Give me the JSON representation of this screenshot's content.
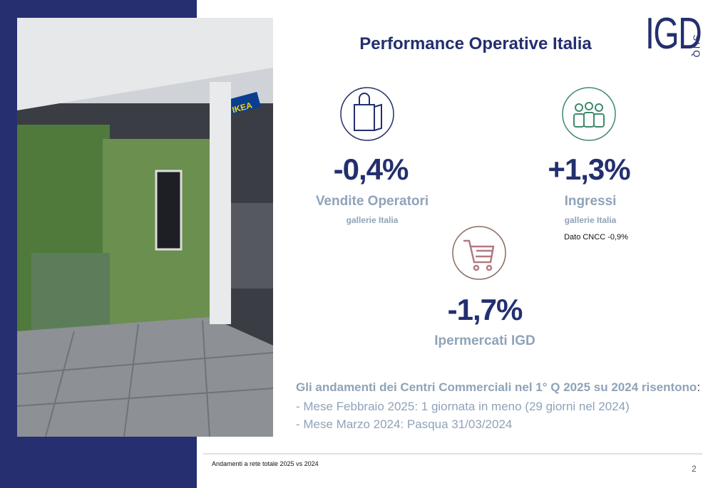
{
  "header": {
    "title": "Performance Operative Italia"
  },
  "logo": {
    "text": "IGD",
    "sub": "SIIQ"
  },
  "metrics": [
    {
      "value": "-0,4%",
      "label": "Vendite Operatori",
      "sub": "gallerie Italia"
    },
    {
      "value": "+1,3%",
      "label": "Ingressi",
      "sub": "gallerie Italia",
      "note": "Dato CNCC -0,9%"
    },
    {
      "value": "-1,7%",
      "label": "Ipermercati IGD"
    }
  ],
  "notes": {
    "heading": "Gli andamenti dei Centri Commerciali nel 1° Q 2025 su 2024 risentono",
    "heading_end": ":",
    "lines": [
      "- Mese Febbraio 2025: 1 giornata in meno (29 giorni nel 2024)",
      "- Mese Marzo 2024: Pasqua 31/03/2024"
    ]
  },
  "footer": {
    "note": "Andamenti a rete totale 2025 vs 2024",
    "page": "2"
  }
}
